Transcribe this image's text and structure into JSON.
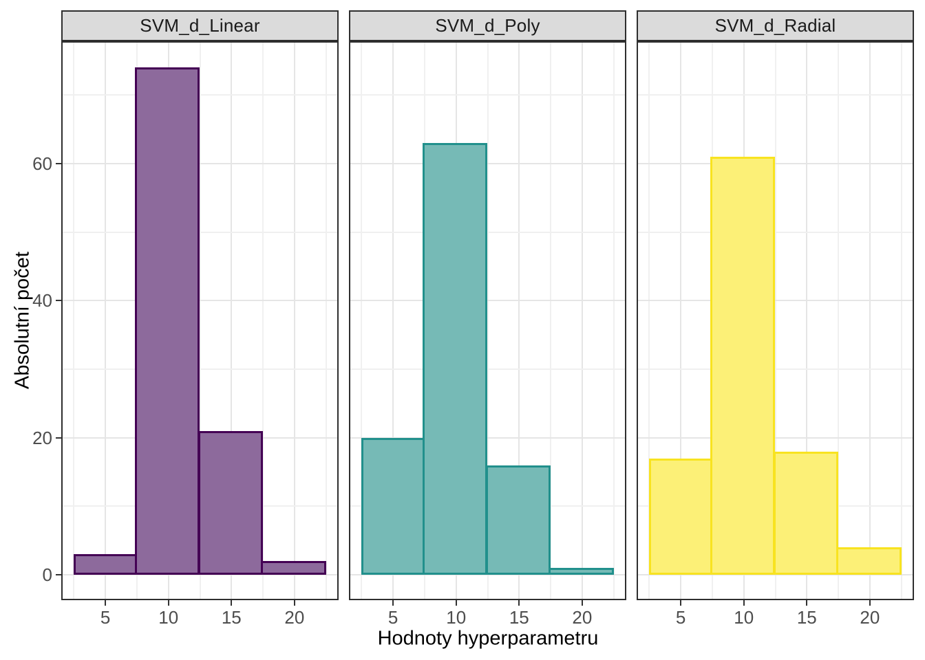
{
  "chart_data": {
    "type": "histogram",
    "faceting": "one row, three facet columns (shared axes)",
    "title": "",
    "xlabel": "Hodnoty hyperparametru",
    "ylabel": "Absolutní počet",
    "bin_edges": [
      2.5,
      7.5,
      12.5,
      17.5,
      22.5
    ],
    "bin_width": 5,
    "x_ticks": [
      5,
      10,
      15,
      20
    ],
    "x_minor_ticks": [
      2.5,
      7.5,
      12.5,
      17.5,
      22.5
    ],
    "y_ticks": [
      0,
      20,
      40,
      60
    ],
    "y_minor_ticks": [
      10,
      30,
      50,
      70
    ],
    "xlim": [
      1.5,
      23.5
    ],
    "ylim": [
      -3.71,
      77.86
    ],
    "grid": "major and minor gridlines, light gray on white",
    "legend": "none",
    "facets": [
      {
        "label": "SVM_d_Linear",
        "counts": [
          3,
          74,
          21,
          2
        ],
        "fill": "#8D6A9C",
        "stroke": "#440154"
      },
      {
        "label": "SVM_d_Poly",
        "counts": [
          20,
          63,
          16,
          1
        ],
        "fill": "#76BAB6",
        "stroke": "#21908C"
      },
      {
        "label": "SVM_d_Radial",
        "counts": [
          17,
          61,
          18,
          4
        ],
        "fill": "#FCF077",
        "stroke": "#F8E320"
      }
    ],
    "theme": {
      "background": "#FFFFFF",
      "panel_bg": "#FFFFFF",
      "panel_border": "#2E2E2E",
      "strip_bg": "#DBDBDB",
      "strip_text_color": "#1A1A1A",
      "grid_major": "#E5E5E5",
      "grid_minor": "#F0F0F0",
      "tick_color": "#333333",
      "tick_label_color": "#4D4D4D",
      "axis_title_color": "#000000"
    }
  }
}
